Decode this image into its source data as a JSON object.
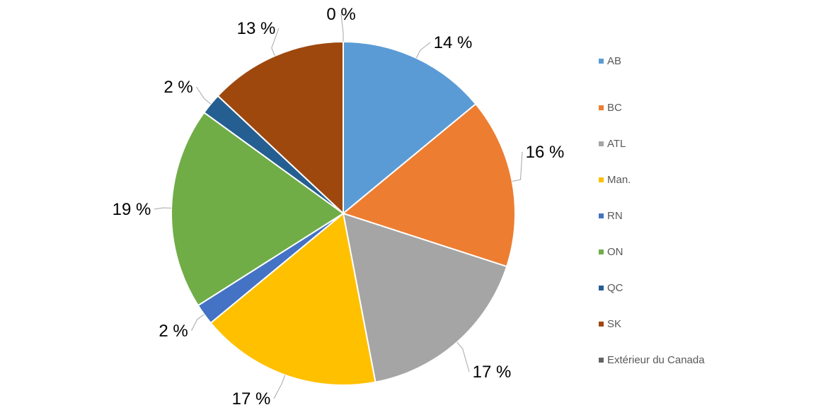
{
  "chart_data": {
    "type": "pie",
    "title": "",
    "start_angle": "top, clockwise",
    "legend_position": "right",
    "slices": [
      {
        "label": "AB",
        "value": 14,
        "display": "14 %",
        "color": "#5B9BD5"
      },
      {
        "label": "BC",
        "value": 16,
        "display": "16 %",
        "color": "#ED7D31"
      },
      {
        "label": "ATL",
        "value": 17,
        "display": "17 %",
        "color": "#A5A5A5"
      },
      {
        "label": "Man.",
        "value": 17,
        "display": "17 %",
        "color": "#FFC000"
      },
      {
        "label": "RN",
        "value": 2,
        "display": "2 %",
        "color": "#4472C4"
      },
      {
        "label": "ON",
        "value": 19,
        "display": "19 %",
        "color": "#70AD47"
      },
      {
        "label": "QC",
        "value": 2,
        "display": "2 %",
        "color": "#255E91"
      },
      {
        "label": "SK",
        "value": 13,
        "display": "13 %",
        "color": "#9E480E"
      },
      {
        "label": "Extérieur du Canada",
        "value": 0,
        "display": "0 %",
        "color": "#636363"
      }
    ]
  }
}
